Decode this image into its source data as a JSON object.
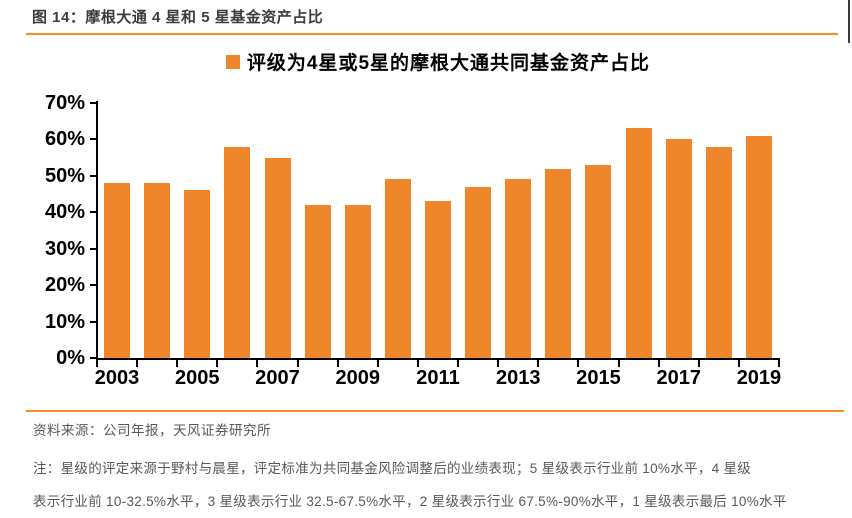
{
  "page": {
    "title": "图 14：摩根大通 4 星和 5 星基金资产占比",
    "source": "资料来源：公司年报，天风证券研究所",
    "note_lines": [
      "注：星级的评定来源于野村与晨星，评定标准为共同基金风险调整后的业绩表现；5 星级表示行业前 10%水平，4 星级",
      "表示行业前 10-32.5%水平，3 星级表示行业 32.5-67.5%水平，2 星级表示行业 67.5%-90%水平，1 星级表示最后 10%水平"
    ]
  },
  "colors": {
    "bar": "#f0862c",
    "rule": "#f78e2d",
    "axis": "#000000",
    "title_text": "#3c3c3c",
    "muted_text": "#595959"
  },
  "chart_data": {
    "type": "bar",
    "title": "评级为4星或5星的摩根大通共同基金资产占比",
    "categories": [
      "2003",
      "2004",
      "2005",
      "2006",
      "2007",
      "2008",
      "2009",
      "2010",
      "2011",
      "2012",
      "2013",
      "2014",
      "2015",
      "2016",
      "2017",
      "2018",
      "2019"
    ],
    "values": [
      48,
      48,
      46,
      58,
      55,
      42,
      42,
      49,
      43,
      47,
      49,
      52,
      53,
      63,
      60,
      58,
      61
    ],
    "unit": "%",
    "xlabel": "",
    "ylabel": "",
    "ylim": [
      0,
      70
    ],
    "ytick_labels": [
      "0%",
      "10%",
      "20%",
      "30%",
      "40%",
      "50%",
      "60%",
      "70%"
    ],
    "xtick_labels": [
      "2003",
      "2005",
      "2007",
      "2009",
      "2011",
      "2013",
      "2015",
      "2017",
      "2019"
    ],
    "grid": false,
    "legend_position": "top-center"
  }
}
